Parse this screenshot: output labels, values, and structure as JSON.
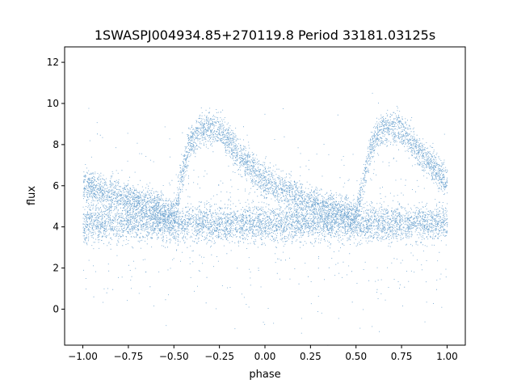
{
  "chart_data": {
    "type": "scatter",
    "title": "1SWASPJ004934.85+270119.8 Period 33181.03125s",
    "xlabel": "phase",
    "ylabel": "flux",
    "xlim": [
      -1.1,
      1.1
    ],
    "ylim": [
      -1.75,
      12.75
    ],
    "xticks": [
      -1.0,
      -0.75,
      -0.5,
      -0.25,
      0.0,
      0.25,
      0.5,
      0.75,
      1.0
    ],
    "xtick_labels": [
      "−1.00",
      "−0.75",
      "−0.50",
      "−0.25",
      "0.00",
      "0.25",
      "0.50",
      "0.75",
      "1.00"
    ],
    "yticks": [
      0,
      2,
      4,
      6,
      8,
      10,
      12
    ],
    "ytick_labels": [
      "0",
      "2",
      "4",
      "6",
      "8",
      "10",
      "12"
    ],
    "grid": false,
    "marker_color": "#3c84bf",
    "series": [
      {
        "description_points": "phase-folded light curve, two repeated cycles",
        "baseline_band": {
          "x": [
            -1.0,
            1.0
          ],
          "y_center": 4.2,
          "y_spread": 0.45
        },
        "upper_branch": {
          "x": [
            -1.0,
            -0.75,
            -0.6,
            -0.5,
            -0.42,
            -0.35,
            -0.25,
            -0.15,
            0.0,
            0.15,
            0.25,
            0.4,
            0.5,
            0.58,
            0.65,
            0.75,
            0.85,
            1.0
          ],
          "y": [
            6.0,
            5.4,
            5.0,
            4.6,
            8.0,
            8.8,
            8.8,
            7.6,
            6.2,
            5.6,
            5.2,
            4.8,
            4.6,
            8.0,
            8.8,
            8.8,
            7.6,
            6.2
          ]
        }
      }
    ]
  }
}
